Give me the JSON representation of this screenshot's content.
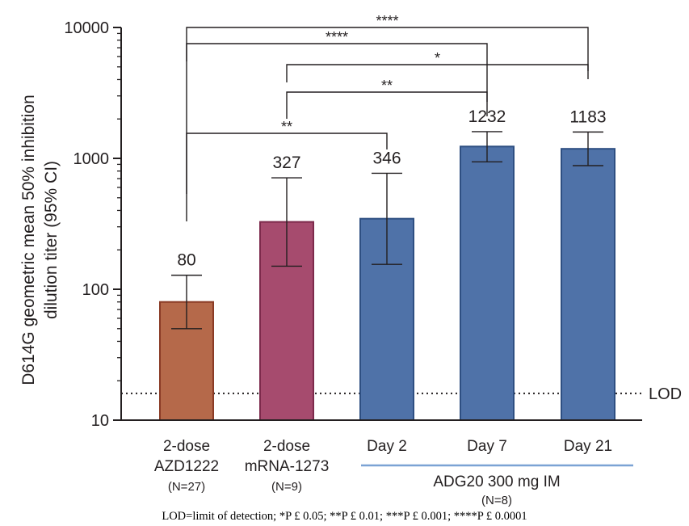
{
  "chart_data": {
    "type": "bar",
    "y_scale": "log",
    "ylim": [
      10,
      10000
    ],
    "ylabel": [
      "D614G geometric mean 50% inhibition",
      "dilution titer (95% CI)"
    ],
    "yticks": [
      "10",
      "100",
      "1000",
      "10000"
    ],
    "categories": [
      {
        "label1": "2-dose",
        "label2": "AZD1222",
        "n": "(N=27)"
      },
      {
        "label1": "2-dose",
        "label2": "mRNA-1273",
        "n": "(N=9)"
      },
      {
        "label1": "Day 2",
        "label2": "",
        "n": ""
      },
      {
        "label1": "Day 7",
        "label2": "",
        "n": ""
      },
      {
        "label1": "Day 21",
        "label2": "",
        "n": ""
      }
    ],
    "values": [
      80,
      327,
      346,
      1232,
      1183
    ],
    "value_labels": [
      "80",
      "327",
      "346",
      "1232",
      "1183"
    ],
    "ci_low": [
      50,
      150,
      155,
      940,
      880
    ],
    "ci_high": [
      128,
      710,
      770,
      1600,
      1590
    ],
    "bar_colors": [
      "#b5694a",
      "#a64b6e",
      "#4f72a8",
      "#4f72a8",
      "#4f72a8"
    ],
    "bar_edges": [
      "#8a3b25",
      "#7d2a4c",
      "#2e4f82",
      "#2e4f82",
      "#2e4f82"
    ],
    "group_label": "ADG20 300 mg IM",
    "group_n": "(N=8)",
    "group_line_color": "#7ba3d4",
    "lod_value": 16,
    "lod_label": "LOD",
    "brackets": [
      {
        "from": 0,
        "to": 4,
        "label": "****"
      },
      {
        "from": 0,
        "to": 3,
        "label": "****"
      },
      {
        "from": 1,
        "to": 4,
        "label": "*"
      },
      {
        "from": 1,
        "to": 3,
        "label": "**"
      },
      {
        "from": 0,
        "to": 2,
        "label": "**"
      }
    ]
  },
  "footnote": "LOD=limit of detection; *P £ 0.05; **P £ 0.01; ***P £ 0.001; ****P £ 0.0001"
}
